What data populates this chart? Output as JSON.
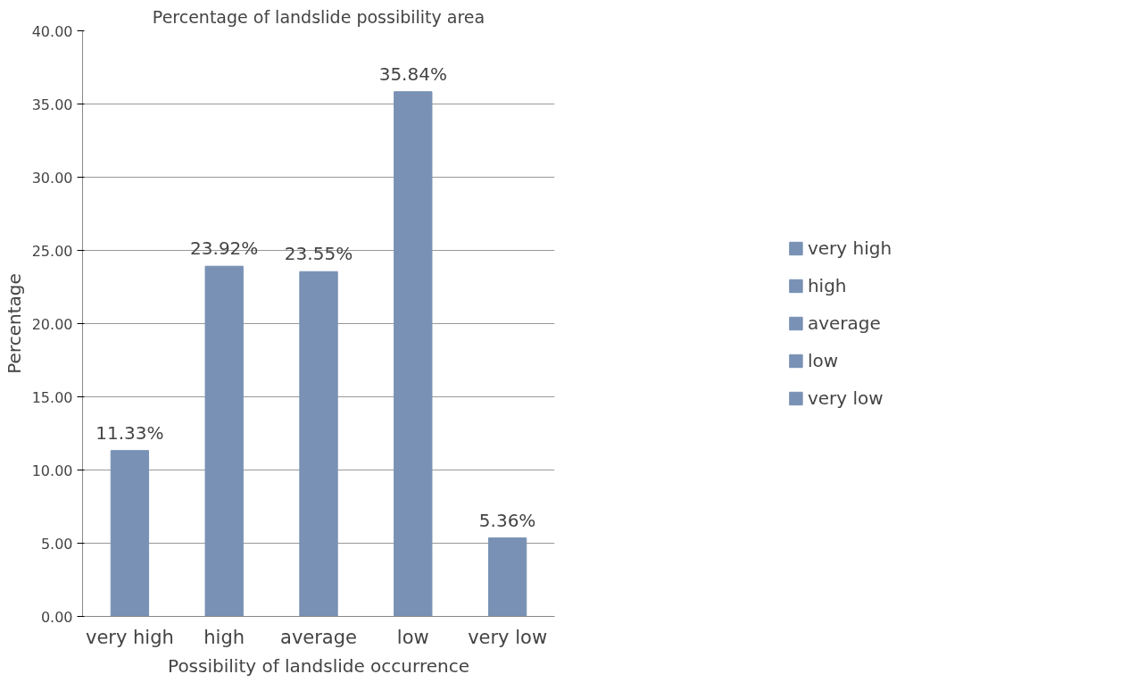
{
  "chart_data": {
    "type": "bar",
    "title": "Percentage of landslide possibility area",
    "xlabel": "Possibility of landslide occurrence",
    "ylabel": "Percentage",
    "categories": [
      "very high",
      "high",
      "average",
      "low",
      "very low"
    ],
    "series": [
      {
        "name": "very high",
        "color": "#7891b4",
        "values": [
          11.33,
          null,
          null,
          null,
          null
        ],
        "value_labels": [
          "11.33%",
          null,
          null,
          null,
          null
        ]
      },
      {
        "name": "high",
        "color": "#7891b4",
        "values": [
          null,
          23.92,
          null,
          null,
          null
        ],
        "value_labels": [
          null,
          "23.92%",
          null,
          null,
          null
        ]
      },
      {
        "name": "average",
        "color": "#7891b4",
        "values": [
          null,
          null,
          23.55,
          null,
          null
        ],
        "value_labels": [
          null,
          null,
          "23.55%",
          null,
          null
        ]
      },
      {
        "name": "low",
        "color": "#7891b4",
        "values": [
          null,
          null,
          null,
          35.84,
          null
        ],
        "value_labels": [
          null,
          null,
          null,
          "35.84%",
          null
        ]
      },
      {
        "name": "very low",
        "color": "#7891b4",
        "values": [
          null,
          null,
          null,
          null,
          5.36
        ],
        "value_labels": [
          null,
          null,
          null,
          null,
          "5.36%"
        ]
      }
    ],
    "ylim": [
      0,
      40
    ],
    "yticks": [
      {
        "value": 0,
        "label": "0.00"
      },
      {
        "value": 5,
        "label": "5.00"
      },
      {
        "value": 10,
        "label": "10.00"
      },
      {
        "value": 15,
        "label": "15.00"
      },
      {
        "value": 20,
        "label": "20.00"
      },
      {
        "value": 25,
        "label": "25.00"
      },
      {
        "value": 30,
        "label": "30.00"
      },
      {
        "value": 35,
        "label": "35.00"
      },
      {
        "value": 40,
        "label": "40.00"
      }
    ],
    "grid": "y",
    "legend": "right"
  }
}
